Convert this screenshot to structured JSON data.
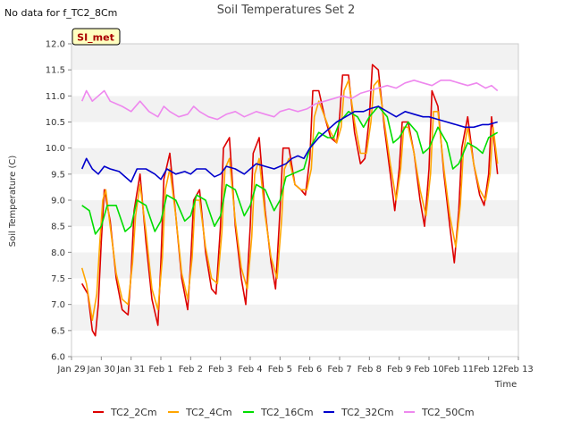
{
  "notice": "No data for f_TC2_8Cm",
  "site_badge": "SI_met",
  "chart_data": {
    "type": "line",
    "title": "Soil Temperatures Set 2",
    "xlabel": "Time",
    "ylabel": "Soil Temperature (C)",
    "ylim": [
      6.0,
      12.0
    ],
    "yticks": [
      "6.0",
      "6.5",
      "7.0",
      "7.5",
      "8.0",
      "8.5",
      "9.0",
      "9.5",
      "10.0",
      "10.5",
      "11.0",
      "11.5",
      "12.0"
    ],
    "xlim": [
      0,
      15
    ],
    "xticks": [
      "Jan 29",
      "Jan 30",
      "Jan 31",
      "Feb 1",
      "Feb 2",
      "Feb 3",
      "Feb 4",
      "Feb 5",
      "Feb 6",
      "Feb 7",
      "Feb 8",
      "Feb 9",
      "Feb 10",
      "Feb 11",
      "Feb 12",
      "Feb 13"
    ],
    "x_unit": "days since Jan 29",
    "grid": "horizontal bands",
    "legend_position": "bottom",
    "series": [
      {
        "name": "TC2_2Cm",
        "color": "#dd0000",
        "x": [
          0.35,
          0.45,
          0.55,
          0.7,
          0.8,
          0.9,
          1.0,
          1.1,
          1.3,
          1.5,
          1.7,
          1.9,
          2.0,
          2.1,
          2.3,
          2.5,
          2.7,
          2.9,
          3.0,
          3.1,
          3.3,
          3.5,
          3.7,
          3.9,
          4.0,
          4.1,
          4.3,
          4.5,
          4.7,
          4.85,
          5.0,
          5.1,
          5.3,
          5.5,
          5.7,
          5.85,
          6.0,
          6.1,
          6.3,
          6.5,
          6.7,
          6.85,
          7.0,
          7.1,
          7.3,
          7.5,
          7.7,
          7.85,
          8.0,
          8.1,
          8.3,
          8.5,
          8.7,
          8.9,
          9.0,
          9.1,
          9.3,
          9.5,
          9.7,
          9.85,
          10.0,
          10.1,
          10.3,
          10.5,
          10.7,
          10.85,
          11.0,
          11.1,
          11.3,
          11.5,
          11.7,
          11.85,
          12.0,
          12.1,
          12.3,
          12.5,
          12.7,
          12.85,
          13.0,
          13.1,
          13.3,
          13.5,
          13.7,
          13.85,
          14.0,
          14.1,
          14.3
        ],
        "y": [
          7.4,
          7.3,
          7.2,
          6.5,
          6.4,
          7.0,
          8.2,
          9.2,
          8.6,
          7.5,
          6.9,
          6.8,
          7.6,
          8.8,
          9.5,
          8.2,
          7.1,
          6.6,
          7.8,
          9.4,
          9.9,
          8.7,
          7.5,
          6.9,
          7.8,
          9.0,
          9.2,
          8.0,
          7.3,
          7.2,
          8.5,
          10.0,
          10.2,
          8.5,
          7.5,
          7.0,
          8.5,
          9.9,
          10.2,
          8.8,
          7.8,
          7.3,
          8.8,
          10.0,
          10.0,
          9.3,
          9.2,
          9.1,
          9.8,
          11.1,
          11.1,
          10.6,
          10.2,
          10.1,
          10.6,
          11.4,
          11.4,
          10.3,
          9.7,
          9.8,
          10.6,
          11.6,
          11.5,
          10.4,
          9.5,
          8.8,
          9.6,
          10.5,
          10.5,
          9.9,
          9.0,
          8.5,
          9.6,
          11.1,
          10.8,
          9.5,
          8.5,
          7.8,
          8.8,
          10.0,
          10.6,
          9.7,
          9.1,
          8.9,
          9.5,
          10.6,
          9.5
        ]
      },
      {
        "name": "TC2_4Cm",
        "color": "#ffa500",
        "x": [
          0.35,
          0.5,
          0.7,
          0.85,
          0.95,
          1.05,
          1.15,
          1.3,
          1.5,
          1.7,
          1.9,
          2.05,
          2.15,
          2.3,
          2.5,
          2.7,
          2.9,
          3.05,
          3.15,
          3.3,
          3.5,
          3.7,
          3.9,
          4.05,
          4.15,
          4.3,
          4.5,
          4.7,
          4.9,
          5.05,
          5.15,
          5.3,
          5.5,
          5.7,
          5.9,
          6.05,
          6.15,
          6.3,
          6.5,
          6.7,
          6.9,
          7.05,
          7.15,
          7.3,
          7.5,
          7.7,
          7.9,
          8.05,
          8.15,
          8.3,
          8.5,
          8.7,
          8.9,
          9.05,
          9.15,
          9.3,
          9.5,
          9.7,
          9.9,
          10.05,
          10.15,
          10.3,
          10.5,
          10.7,
          10.9,
          11.05,
          11.15,
          11.3,
          11.5,
          11.7,
          11.9,
          12.05,
          12.15,
          12.3,
          12.5,
          12.7,
          12.9,
          13.05,
          13.15,
          13.3,
          13.5,
          13.7,
          13.9,
          14.05,
          14.15,
          14.3
        ],
        "y": [
          7.7,
          7.4,
          6.7,
          7.2,
          8.2,
          9.0,
          9.2,
          8.5,
          7.6,
          7.1,
          7.0,
          7.8,
          8.7,
          9.3,
          8.4,
          7.3,
          6.9,
          7.9,
          9.2,
          9.6,
          8.7,
          7.6,
          7.1,
          7.9,
          9.0,
          9.0,
          8.1,
          7.5,
          7.4,
          8.4,
          9.6,
          9.8,
          8.6,
          7.7,
          7.3,
          8.3,
          9.5,
          9.8,
          8.7,
          7.9,
          7.5,
          8.6,
          9.6,
          9.8,
          9.3,
          9.2,
          9.2,
          9.6,
          10.6,
          10.9,
          10.6,
          10.3,
          10.1,
          10.4,
          11.1,
          11.3,
          10.5,
          9.9,
          9.9,
          10.5,
          11.2,
          11.3,
          10.5,
          9.7,
          9.0,
          9.6,
          10.4,
          10.4,
          9.9,
          9.2,
          8.7,
          9.5,
          10.7,
          10.7,
          9.6,
          8.7,
          8.1,
          8.9,
          9.9,
          10.4,
          9.7,
          9.2,
          9.0,
          9.5,
          10.4,
          9.7
        ]
      },
      {
        "name": "TC2_16Cm",
        "color": "#00dd00",
        "x": [
          0.35,
          0.6,
          0.8,
          1.0,
          1.2,
          1.5,
          1.8,
          2.0,
          2.2,
          2.5,
          2.8,
          3.0,
          3.2,
          3.5,
          3.8,
          4.0,
          4.2,
          4.5,
          4.8,
          5.0,
          5.2,
          5.5,
          5.8,
          6.0,
          6.2,
          6.5,
          6.8,
          7.0,
          7.2,
          7.4,
          7.6,
          7.8,
          8.0,
          8.3,
          8.6,
          8.8,
          9.0,
          9.3,
          9.6,
          9.8,
          10.0,
          10.3,
          10.6,
          10.8,
          11.0,
          11.3,
          11.6,
          11.8,
          12.0,
          12.3,
          12.6,
          12.8,
          13.0,
          13.3,
          13.6,
          13.8,
          14.0,
          14.3
        ],
        "y": [
          8.9,
          8.8,
          8.35,
          8.5,
          8.9,
          8.9,
          8.4,
          8.5,
          9.0,
          8.9,
          8.4,
          8.6,
          9.1,
          9.0,
          8.6,
          8.7,
          9.1,
          9.0,
          8.5,
          8.7,
          9.3,
          9.2,
          8.7,
          8.9,
          9.3,
          9.2,
          8.8,
          9.0,
          9.45,
          9.5,
          9.55,
          9.6,
          10.0,
          10.3,
          10.2,
          10.2,
          10.5,
          10.7,
          10.6,
          10.4,
          10.6,
          10.8,
          10.6,
          10.1,
          10.2,
          10.5,
          10.3,
          9.9,
          10.0,
          10.4,
          10.1,
          9.6,
          9.7,
          10.1,
          10.0,
          9.9,
          10.2,
          10.3
        ]
      },
      {
        "name": "TC2_32Cm",
        "color": "#0000cc",
        "x": [
          0.35,
          0.5,
          0.7,
          0.9,
          1.1,
          1.3,
          1.6,
          2.0,
          2.2,
          2.5,
          2.8,
          3.0,
          3.2,
          3.5,
          3.8,
          4.0,
          4.2,
          4.5,
          4.8,
          5.0,
          5.2,
          5.5,
          5.8,
          6.0,
          6.2,
          6.5,
          6.8,
          7.0,
          7.2,
          7.4,
          7.6,
          7.8,
          8.0,
          8.3,
          8.6,
          8.9,
          9.2,
          9.5,
          9.8,
          10.0,
          10.3,
          10.6,
          10.9,
          11.2,
          11.5,
          11.8,
          12.0,
          12.3,
          12.6,
          12.9,
          13.2,
          13.5,
          13.8,
          14.0,
          14.3
        ],
        "y": [
          9.6,
          9.8,
          9.6,
          9.5,
          9.65,
          9.6,
          9.55,
          9.35,
          9.6,
          9.6,
          9.5,
          9.4,
          9.6,
          9.5,
          9.55,
          9.5,
          9.6,
          9.6,
          9.45,
          9.5,
          9.65,
          9.6,
          9.5,
          9.6,
          9.7,
          9.65,
          9.6,
          9.65,
          9.7,
          9.8,
          9.85,
          9.8,
          10.0,
          10.2,
          10.35,
          10.5,
          10.6,
          10.7,
          10.7,
          10.75,
          10.8,
          10.7,
          10.6,
          10.7,
          10.65,
          10.6,
          10.6,
          10.55,
          10.5,
          10.45,
          10.4,
          10.4,
          10.45,
          10.45,
          10.5
        ]
      },
      {
        "name": "TC2_50Cm",
        "color": "#ee88ee",
        "x": [
          0.35,
          0.5,
          0.7,
          0.9,
          1.1,
          1.3,
          1.5,
          1.7,
          2.0,
          2.3,
          2.6,
          2.9,
          3.1,
          3.3,
          3.6,
          3.9,
          4.1,
          4.3,
          4.6,
          4.9,
          5.2,
          5.5,
          5.8,
          6.0,
          6.2,
          6.5,
          6.8,
          7.0,
          7.3,
          7.6,
          7.9,
          8.2,
          8.5,
          8.8,
          9.1,
          9.4,
          9.7,
          10.0,
          10.3,
          10.6,
          10.9,
          11.2,
          11.5,
          11.8,
          12.1,
          12.4,
          12.7,
          13.0,
          13.3,
          13.6,
          13.9,
          14.1,
          14.3
        ],
        "y": [
          10.9,
          11.1,
          10.9,
          11.0,
          11.1,
          10.9,
          10.85,
          10.8,
          10.7,
          10.9,
          10.7,
          10.6,
          10.8,
          10.7,
          10.6,
          10.65,
          10.8,
          10.7,
          10.6,
          10.55,
          10.65,
          10.7,
          10.6,
          10.65,
          10.7,
          10.65,
          10.6,
          10.7,
          10.75,
          10.7,
          10.75,
          10.85,
          10.9,
          10.95,
          11.0,
          10.95,
          11.05,
          11.1,
          11.15,
          11.2,
          11.15,
          11.25,
          11.3,
          11.25,
          11.2,
          11.3,
          11.3,
          11.25,
          11.2,
          11.25,
          11.15,
          11.2,
          11.1
        ]
      }
    ]
  }
}
